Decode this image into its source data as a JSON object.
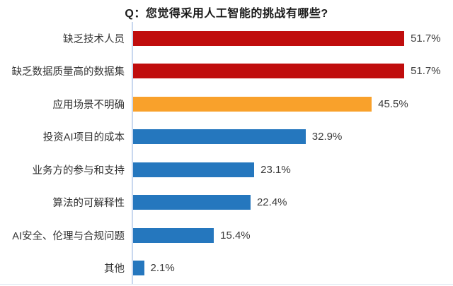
{
  "header": {
    "title": "Q：您觉得采用人工智能的挑战有哪些?"
  },
  "chart_data": {
    "type": "bar",
    "orientation": "horizontal",
    "title": "Q：您觉得采用人工智能的挑战有哪些?",
    "categories": [
      "缺乏技术人员",
      "缺乏数据质量高的数据集",
      "应用场景不明确",
      "投资AI项目的成本",
      "业务方的参与和支持",
      "算法的可解释性",
      "AI安全、伦理与合规问题",
      "其他"
    ],
    "values": [
      51.7,
      51.7,
      45.5,
      32.9,
      23.1,
      22.4,
      15.4,
      2.1
    ],
    "value_labels": [
      "51.7%",
      "51.7%",
      "45.5%",
      "32.9%",
      "23.1%",
      "22.4%",
      "15.4%",
      "2.1%"
    ],
    "bar_colors": [
      "#C00D0D",
      "#C00D0D",
      "#F9A12B",
      "#2577BE",
      "#2577BE",
      "#2577BE",
      "#2577BE",
      "#2577BE"
    ],
    "xlabel": "",
    "ylabel": "",
    "xlim": [
      0,
      61
    ],
    "grid": false,
    "legend": "none",
    "data_labels": "outside-end"
  },
  "colors": {
    "red": "#C00D0D",
    "orange": "#F9A12B",
    "blue": "#2577BE",
    "axis_line": "#C9D8EF",
    "label_text": "#333333",
    "value_text": "#3B3B3B",
    "title_text": "#1A1A1A",
    "background": "#FFFFFF"
  }
}
